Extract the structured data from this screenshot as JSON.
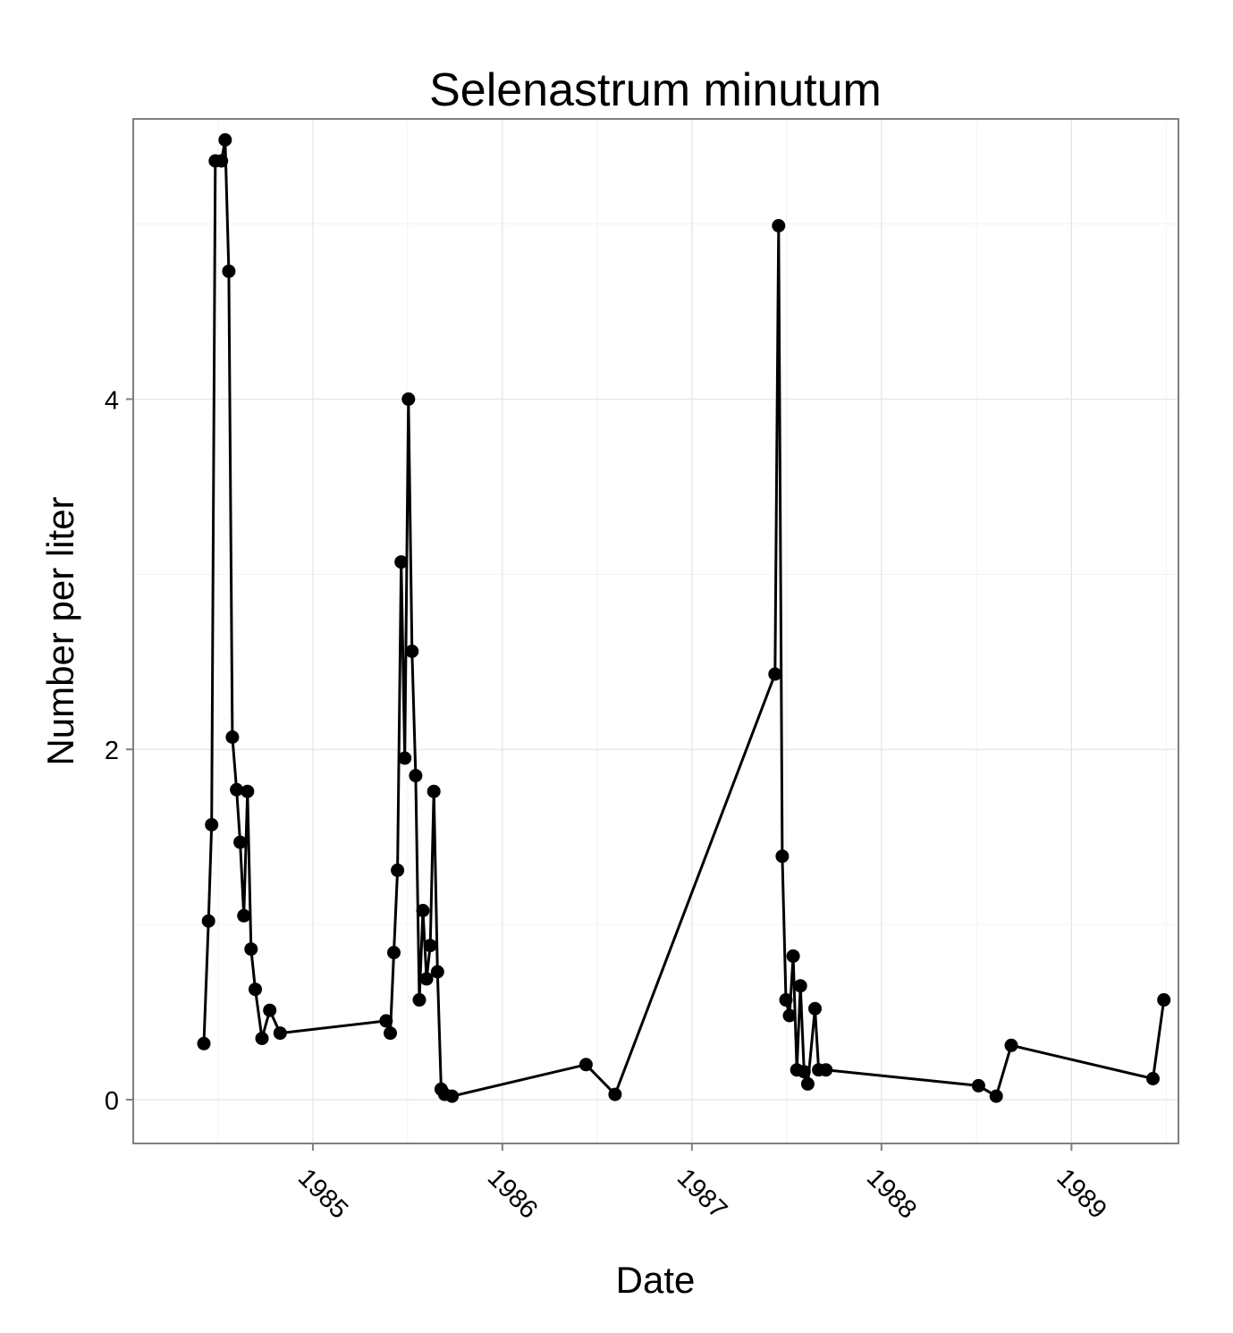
{
  "chart_data": {
    "type": "line",
    "title": "Selenastrum minutum",
    "xlabel": "Date",
    "ylabel": "Number per liter",
    "x_ticks": [
      "1985",
      "1986",
      "1987",
      "1988",
      "1989"
    ],
    "y_ticks": [
      0,
      2,
      4
    ],
    "xlim": [
      "1984-01-21",
      "1989-07-26"
    ],
    "ylim": [
      -0.25,
      5.6
    ],
    "grid": true,
    "markers": true,
    "series": [
      {
        "points": [
          [
            "1984-06-05",
            0.32
          ],
          [
            "1984-06-14",
            1.02
          ],
          [
            "1984-06-20",
            1.57
          ],
          [
            "1984-06-27",
            5.36
          ],
          [
            "1984-07-09",
            5.36
          ],
          [
            "1984-07-16",
            5.48
          ],
          [
            "1984-07-23",
            4.73
          ],
          [
            "1984-07-30",
            2.07
          ],
          [
            "1984-08-07",
            1.77
          ],
          [
            "1984-08-14",
            1.47
          ],
          [
            "1984-08-21",
            1.05
          ],
          [
            "1984-08-28",
            1.76
          ],
          [
            "1984-09-04",
            0.86
          ],
          [
            "1984-09-12",
            0.63
          ],
          [
            "1984-09-25",
            0.35
          ],
          [
            "1984-10-10",
            0.51
          ],
          [
            "1984-10-30",
            0.38
          ],
          [
            "1985-05-22",
            0.45
          ],
          [
            "1985-05-30",
            0.38
          ],
          [
            "1985-06-06",
            0.84
          ],
          [
            "1985-06-13",
            1.31
          ],
          [
            "1985-06-20",
            3.07
          ],
          [
            "1985-06-27",
            1.95
          ],
          [
            "1985-07-04",
            4.0
          ],
          [
            "1985-07-11",
            2.56
          ],
          [
            "1985-07-18",
            1.85
          ],
          [
            "1985-07-25",
            0.57
          ],
          [
            "1985-08-01",
            1.08
          ],
          [
            "1985-08-08",
            0.69
          ],
          [
            "1985-08-15",
            0.88
          ],
          [
            "1985-08-22",
            1.76
          ],
          [
            "1985-08-29",
            0.73
          ],
          [
            "1985-09-05",
            0.06
          ],
          [
            "1985-09-12",
            0.03
          ],
          [
            "1985-09-26",
            0.02
          ],
          [
            "1986-06-11",
            0.2
          ],
          [
            "1986-08-06",
            0.03
          ],
          [
            "1987-06-10",
            2.43
          ],
          [
            "1987-06-17",
            4.99
          ],
          [
            "1987-06-24",
            1.39
          ],
          [
            "1987-07-01",
            0.57
          ],
          [
            "1987-07-08",
            0.48
          ],
          [
            "1987-07-15",
            0.82
          ],
          [
            "1987-07-22",
            0.17
          ],
          [
            "1987-07-29",
            0.65
          ],
          [
            "1987-08-05",
            0.16
          ],
          [
            "1987-08-12",
            0.09
          ],
          [
            "1987-08-26",
            0.52
          ],
          [
            "1987-09-02",
            0.17
          ],
          [
            "1987-09-16",
            0.17
          ],
          [
            "1988-07-06",
            0.08
          ],
          [
            "1988-08-09",
            0.02
          ],
          [
            "1988-09-07",
            0.31
          ],
          [
            "1989-06-07",
            0.12
          ],
          [
            "1989-06-28",
            0.57
          ]
        ]
      }
    ]
  }
}
